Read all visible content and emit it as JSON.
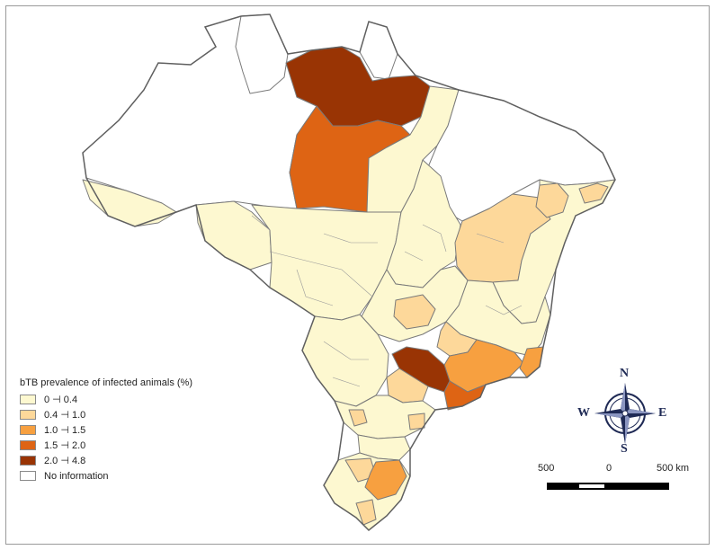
{
  "map": {
    "colors": {
      "class_0": "#fdf8d0",
      "class_1": "#fdd89a",
      "class_2": "#f7a040",
      "class_3": "#de6414",
      "class_4": "#993404",
      "no_info": "#ffffff",
      "border": "#8a8a8a",
      "country_border": "#606060"
    }
  },
  "legend": {
    "title": "bTB prevalence of infected animals (%)",
    "items": [
      {
        "label": "0 ⊣ 0.4",
        "color": "#fdf8d0"
      },
      {
        "label": "0.4 ⊣ 1.0",
        "color": "#fdd89a"
      },
      {
        "label": "1.0 ⊣ 1.5",
        "color": "#f7a040"
      },
      {
        "label": "1.5 ⊣ 2.0",
        "color": "#de6414"
      },
      {
        "label": "2.0 ⊣ 4.8",
        "color": "#993404"
      },
      {
        "label": "No information",
        "color": "#ffffff"
      }
    ]
  },
  "compass": {
    "north": "N",
    "south": "S",
    "east": "E",
    "west": "W",
    "color": "#1f2a55"
  },
  "scale_bar": {
    "left_label": "500",
    "mid_label": "0",
    "right_label": "500 km"
  }
}
